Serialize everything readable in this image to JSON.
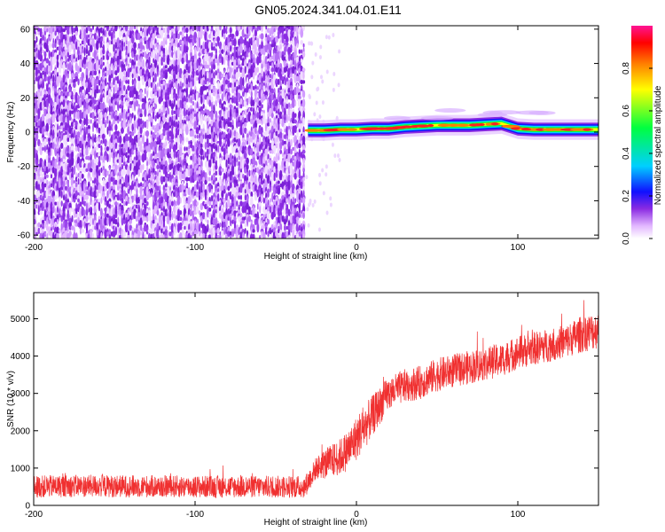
{
  "title": "GN05.2024.341.04.01.E11",
  "chart_data": [
    {
      "type": "heatmap",
      "xlabel": "Height of straight line (km)",
      "ylabel": "Frequency (Hz)",
      "xlim": [
        -200,
        150
      ],
      "ylim": [
        -62,
        62
      ],
      "xticks": [
        "-200",
        "-100",
        "0",
        "100"
      ],
      "yticks": [
        "60",
        "40",
        "20",
        "0",
        "-20",
        "-40",
        "-60"
      ],
      "colorbar": {
        "label": "Normalized spectral amplitude",
        "range": [
          0,
          1
        ],
        "ticks": [
          "0.0",
          "0.2",
          "0.4",
          "0.6",
          "0.8"
        ],
        "colors": [
          "#ffffff",
          "#e2b6ff",
          "#8a2be2",
          "#1010ff",
          "#00cfff",
          "#00ff40",
          "#ffff00",
          "#ff8000",
          "#ff0000",
          "#ff1493"
        ]
      },
      "noise_region_x": [
        -200,
        -32
      ],
      "signal_band": {
        "x_start": -32,
        "x_end": 150,
        "frequency_hz": [
          [
            -30,
            1
          ],
          [
            -20,
            1
          ],
          [
            -10,
            1.5
          ],
          [
            0,
            1.5
          ],
          [
            10,
            2
          ],
          [
            20,
            2
          ],
          [
            30,
            3
          ],
          [
            40,
            3.5
          ],
          [
            50,
            4
          ],
          [
            60,
            4
          ],
          [
            70,
            4
          ],
          [
            80,
            4.5
          ],
          [
            90,
            5
          ],
          [
            100,
            2
          ],
          [
            110,
            1.5
          ],
          [
            120,
            1.5
          ],
          [
            130,
            1.5
          ],
          [
            140,
            1.5
          ],
          [
            150,
            1.5
          ]
        ]
      },
      "grid": false
    },
    {
      "type": "line",
      "xlabel": "Height of straight line (km)",
      "ylabel": "SNR (10 * v/v)",
      "xlim": [
        -200,
        150
      ],
      "ylim": [
        0,
        5700
      ],
      "xticks": [
        "-200",
        "-100",
        "0",
        "100"
      ],
      "yticks": [
        "0",
        "1000",
        "2000",
        "3000",
        "4000",
        "5000"
      ],
      "series": [
        {
          "color": "#f03030",
          "x": [
            -200,
            -180,
            -160,
            -140,
            -120,
            -100,
            -80,
            -60,
            -40,
            -32,
            -25,
            -20,
            -15,
            -10,
            -5,
            0,
            5,
            10,
            15,
            20,
            30,
            40,
            50,
            60,
            70,
            80,
            90,
            100,
            110,
            120,
            130,
            140,
            150
          ],
          "y": [
            500,
            520,
            520,
            510,
            510,
            500,
            500,
            500,
            500,
            500,
            1000,
            1100,
            1200,
            1300,
            1500,
            1800,
            2100,
            2400,
            2700,
            3000,
            3200,
            3300,
            3500,
            3600,
            3700,
            3800,
            3900,
            4100,
            4200,
            4300,
            4400,
            4600,
            4700
          ],
          "spread": [
            300,
            300,
            300,
            300,
            300,
            300,
            300,
            300,
            300,
            300,
            300,
            400,
            450,
            500,
            550,
            600,
            600,
            550,
            500,
            450,
            450,
            450,
            450,
            450,
            450,
            450,
            450,
            450,
            450,
            450,
            450,
            500,
            500
          ]
        }
      ],
      "grid": false
    }
  ]
}
